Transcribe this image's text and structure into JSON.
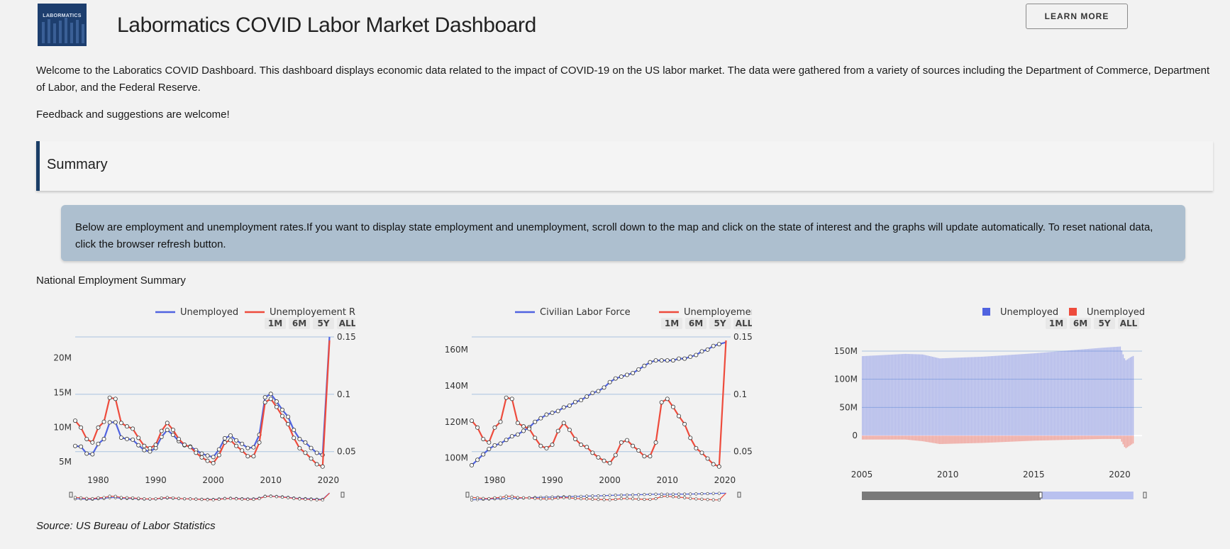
{
  "header": {
    "logo_text": "LABORMATICS",
    "title": "Labormatics COVID Labor Market Dashboard",
    "learn_more": "LEARN MORE"
  },
  "intro": "Welcome to the Laboratics COVID Dashboard. This dashboard displays economic data related to the impact of COVID-19 on the US labor market. The data were gathered from a variety of sources including the Department of Commerce, Department of Labor, and the Federal Reserve.",
  "feedback": "Feedback and suggestions are welcome!",
  "summary_heading": "Summary",
  "info_text": "Below are employment and unemployment rates.If you want to display state employment and unemployment, scroll down to the map and click on the state of interest and the graphs will update automatically. To reset national data, click the browser refresh button.",
  "section_label": "National Employment Summary",
  "source": "Source: US Bureau of Labor Statistics",
  "range_buttons": [
    "1M",
    "6M",
    "5Y",
    "ALL"
  ],
  "colors": {
    "series_blue": "#5063e0",
    "series_red": "#ee4b3c",
    "accent": "#1a3d66",
    "grid": "#a9c3e0"
  },
  "chart_data": [
    {
      "type": "line",
      "legend": [
        "Unemployed",
        "Unemployement Rate"
      ],
      "xlim": [
        1976,
        2021
      ],
      "x_ticks": [
        "1980",
        "1990",
        "2000",
        "2010",
        "2020"
      ],
      "y_left_ticks": [
        "5M",
        "10M",
        "15M",
        "20M"
      ],
      "y_left_lim": [
        4,
        23
      ],
      "y_right_ticks": [
        "0.05",
        "0.1",
        "0.15"
      ],
      "y_right_lim": [
        0.035,
        0.15
      ],
      "series": [
        {
          "name": "Unemployed",
          "axis": "left",
          "x": [
            1976,
            1977,
            1978,
            1979,
            1980,
            1981,
            1982,
            1983,
            1984,
            1985,
            1986,
            1987,
            1988,
            1989,
            1990,
            1991,
            1992,
            1993,
            1994,
            1995,
            1996,
            1997,
            1998,
            1999,
            2000,
            2001,
            2002,
            2003,
            2004,
            2005,
            2006,
            2007,
            2008,
            2009,
            2010,
            2011,
            2012,
            2013,
            2014,
            2015,
            2016,
            2017,
            2018,
            2019,
            2020
          ],
          "y": [
            7.3,
            7.2,
            6.2,
            6.1,
            7.6,
            8.3,
            10.7,
            10.7,
            8.5,
            8.3,
            8.2,
            7.4,
            6.7,
            6.5,
            7.0,
            8.6,
            9.6,
            8.9,
            8.0,
            7.4,
            7.2,
            6.7,
            6.2,
            5.9,
            5.7,
            6.8,
            8.4,
            8.8,
            8.1,
            7.6,
            7.0,
            7.1,
            8.9,
            14.3,
            14.8,
            13.7,
            12.5,
            11.5,
            9.6,
            8.3,
            7.8,
            7.0,
            6.3,
            6.0,
            23.0
          ]
        },
        {
          "name": "Unemployement Rate",
          "axis": "right",
          "x": [
            1976,
            1977,
            1978,
            1979,
            1980,
            1981,
            1982,
            1983,
            1984,
            1985,
            1986,
            1987,
            1988,
            1989,
            1990,
            1991,
            1992,
            1993,
            1994,
            1995,
            1996,
            1997,
            1998,
            1999,
            2000,
            2001,
            2002,
            2003,
            2004,
            2005,
            2006,
            2007,
            2008,
            2009,
            2010,
            2011,
            2012,
            2013,
            2014,
            2015,
            2016,
            2017,
            2018,
            2019,
            2020
          ],
          "y": [
            0.077,
            0.071,
            0.061,
            0.058,
            0.071,
            0.076,
            0.097,
            0.096,
            0.075,
            0.072,
            0.07,
            0.062,
            0.055,
            0.053,
            0.056,
            0.068,
            0.075,
            0.069,
            0.061,
            0.056,
            0.054,
            0.049,
            0.045,
            0.042,
            0.04,
            0.047,
            0.058,
            0.06,
            0.055,
            0.051,
            0.046,
            0.046,
            0.058,
            0.093,
            0.096,
            0.089,
            0.081,
            0.074,
            0.062,
            0.053,
            0.049,
            0.044,
            0.039,
            0.037,
            0.147
          ]
        }
      ]
    },
    {
      "type": "line",
      "legend": [
        "Civilian Labor Force",
        "Unemployement Rate"
      ],
      "xlim": [
        1976,
        2021
      ],
      "x_ticks": [
        "1980",
        "1990",
        "2000",
        "2010",
        "2020"
      ],
      "y_left_ticks": [
        "100M",
        "120M",
        "140M",
        "160M"
      ],
      "y_left_lim": [
        94,
        167
      ],
      "y_right_ticks": [
        "0.05",
        "0.1",
        "0.15"
      ],
      "y_right_lim": [
        0.035,
        0.15
      ],
      "series": [
        {
          "name": "Civilian Labor Force",
          "axis": "left",
          "x": [
            1976,
            1977,
            1978,
            1979,
            1980,
            1981,
            1982,
            1983,
            1984,
            1985,
            1986,
            1987,
            1988,
            1989,
            1990,
            1991,
            1992,
            1993,
            1994,
            1995,
            1996,
            1997,
            1998,
            1999,
            2000,
            2001,
            2002,
            2003,
            2004,
            2005,
            2006,
            2007,
            2008,
            2009,
            2010,
            2011,
            2012,
            2013,
            2014,
            2015,
            2016,
            2017,
            2018,
            2019,
            2020
          ],
          "y": [
            96,
            99,
            102,
            105,
            107,
            108,
            110,
            112,
            113,
            115,
            117,
            120,
            122,
            124,
            125,
            126,
            128,
            129,
            131,
            132,
            134,
            136,
            137,
            139,
            142,
            144,
            145,
            146,
            147,
            149,
            151,
            153,
            154,
            154,
            154,
            154,
            155,
            155,
            156,
            157,
            159,
            160,
            162,
            163,
            164
          ]
        },
        {
          "name": "Unemployement Rate",
          "axis": "right",
          "x": [
            1976,
            1977,
            1978,
            1979,
            1980,
            1981,
            1982,
            1983,
            1984,
            1985,
            1986,
            1987,
            1988,
            1989,
            1990,
            1991,
            1992,
            1993,
            1994,
            1995,
            1996,
            1997,
            1998,
            1999,
            2000,
            2001,
            2002,
            2003,
            2004,
            2005,
            2006,
            2007,
            2008,
            2009,
            2010,
            2011,
            2012,
            2013,
            2014,
            2015,
            2016,
            2017,
            2018,
            2019,
            2020
          ],
          "y": [
            0.077,
            0.071,
            0.061,
            0.058,
            0.071,
            0.076,
            0.097,
            0.096,
            0.075,
            0.072,
            0.07,
            0.062,
            0.055,
            0.053,
            0.056,
            0.068,
            0.075,
            0.069,
            0.061,
            0.056,
            0.054,
            0.049,
            0.045,
            0.042,
            0.04,
            0.047,
            0.058,
            0.06,
            0.055,
            0.051,
            0.046,
            0.046,
            0.058,
            0.093,
            0.096,
            0.089,
            0.081,
            0.074,
            0.062,
            0.053,
            0.049,
            0.044,
            0.039,
            0.037,
            0.147
          ]
        }
      ]
    },
    {
      "type": "bar",
      "legend": [
        "Unemployed",
        "Unemployed"
      ],
      "xlim": [
        2005,
        2021.3
      ],
      "x_ticks": [
        "2005",
        "2010",
        "2015",
        "2020"
      ],
      "y_ticks": [
        "0",
        "50M",
        "100M",
        "150M"
      ],
      "ylim": [
        -20,
        160
      ],
      "series": [
        {
          "name": "Unemployed",
          "anchors_x": [
            2005,
            2007.5,
            2008.5,
            2009.5,
            2012,
            2015,
            2019,
            2020.0,
            2020.3,
            2020.6,
            2020.8
          ],
          "anchors_y": [
            141,
            145,
            144,
            137,
            140,
            146,
            156,
            158,
            133,
            139,
            142
          ]
        },
        {
          "name": "Unemployed",
          "anchors_x": [
            2005,
            2007.5,
            2008.5,
            2009.5,
            2012,
            2015,
            2019,
            2020.0,
            2020.3,
            2020.6,
            2020.8
          ],
          "anchors_y": [
            -7,
            -7,
            -10,
            -15,
            -13,
            -9,
            -6,
            -6,
            -23,
            -17,
            -13
          ]
        }
      ]
    }
  ]
}
